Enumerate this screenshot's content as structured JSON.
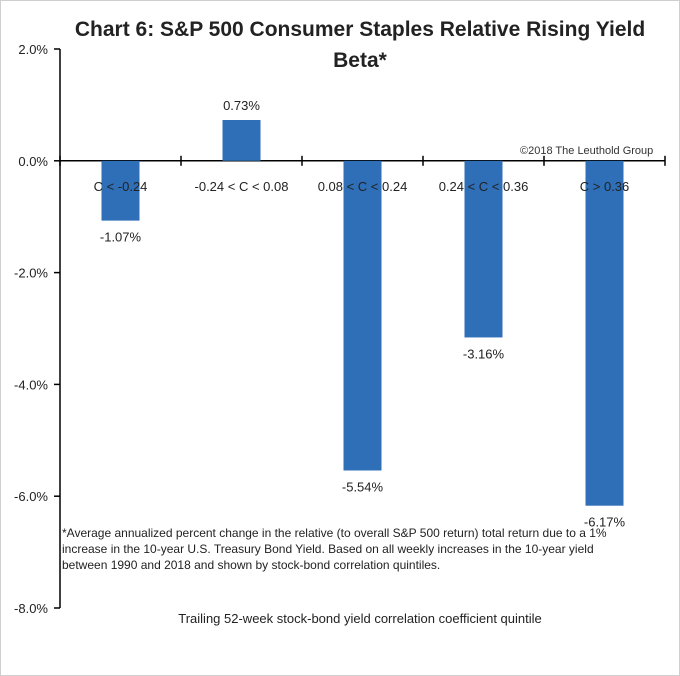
{
  "chart_data": {
    "type": "bar",
    "title": "Chart 6: S&P 500 Consumer Staples Relative Rising Yield Beta*",
    "categories": [
      "C < -0.24",
      "-0.24 < C < 0.08",
      "0.08 < C < 0.24",
      "0.24 < C < 0.36",
      "C > 0.36"
    ],
    "values": [
      -1.07,
      0.73,
      -5.54,
      -3.16,
      -6.17
    ],
    "value_labels": [
      "-1.07%",
      "0.73%",
      "-5.54%",
      "-3.16%",
      "-6.17%"
    ],
    "ylim": [
      -8,
      2
    ],
    "yticks": [
      2,
      0,
      -2,
      -4,
      -6,
      -8
    ],
    "ytick_labels": [
      "2.0%",
      "0.0%",
      "-2.0%",
      "-4.0%",
      "-6.0%",
      "-8.0%"
    ],
    "xlabel": "Trailing 52-week stock-bond yield correlation coefficient quintile",
    "ylabel": "",
    "grid": false,
    "bar_color": "#2e6fb7"
  },
  "annotations": {
    "copyright": "©2018 The Leuthold Group",
    "footnote": "*Average annualized percent change in the relative (to overall S&P 500 return) total return due to a 1% increase in the 10-year U.S. Treasury Bond Yield.  Based on all weekly increases in the 10-year yield between 1990 and 2018 and shown by stock-bond correlation quintiles."
  }
}
